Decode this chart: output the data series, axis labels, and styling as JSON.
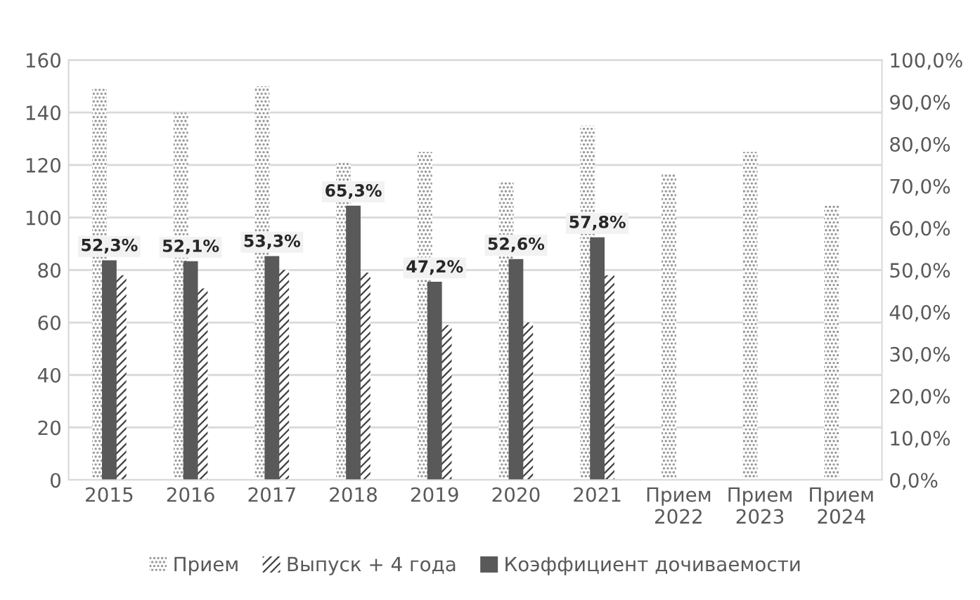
{
  "chart_data": {
    "type": "bar",
    "categories": [
      "2015",
      "2016",
      "2017",
      "2018",
      "2019",
      "2020",
      "2021",
      "Прием\n2022",
      "Прием\n2023",
      "Прием\n2024"
    ],
    "series": [
      {
        "name": "Прием",
        "color": "#8c8c8c",
        "values": [
          149,
          140,
          150,
          121,
          125,
          114,
          135,
          117,
          125,
          105
        ]
      },
      {
        "name": "Выпуск + 4 года",
        "color": "#404040",
        "values": [
          78,
          73,
          80,
          79,
          59,
          60,
          78,
          null,
          null,
          null
        ]
      },
      {
        "name": "Коэффициент дочиваемости",
        "color": "#595959",
        "axis": "y2",
        "values": [
          52.3,
          52.1,
          53.3,
          65.3,
          47.2,
          52.6,
          57.8,
          null,
          null,
          null
        ],
        "value_labels": [
          "52,3%",
          "52,1%",
          "53,3%",
          "65,3%",
          "47,2%",
          "52,6%",
          "57,8%",
          null,
          null,
          null
        ]
      }
    ],
    "ylim": [
      0,
      160
    ],
    "yticks": [
      0,
      20,
      40,
      60,
      80,
      100,
      120,
      140,
      160
    ],
    "y2lim": [
      0,
      100
    ],
    "y2ticks": [
      {
        "value": 0,
        "label": "0,0%"
      },
      {
        "value": 10,
        "label": "10,0%"
      },
      {
        "value": 20,
        "label": "20,0%"
      },
      {
        "value": 30,
        "label": "30,0%"
      },
      {
        "value": 40,
        "label": "40,0%"
      },
      {
        "value": 50,
        "label": "50,0%"
      },
      {
        "value": 60,
        "label": "60,0%"
      },
      {
        "value": 70,
        "label": "70,0%"
      },
      {
        "value": 80,
        "label": "80,0%"
      },
      {
        "value": 90,
        "label": "90,0%"
      },
      {
        "value": 100,
        "label": "100,0%"
      }
    ],
    "grid": "y",
    "legend": "bottom"
  }
}
